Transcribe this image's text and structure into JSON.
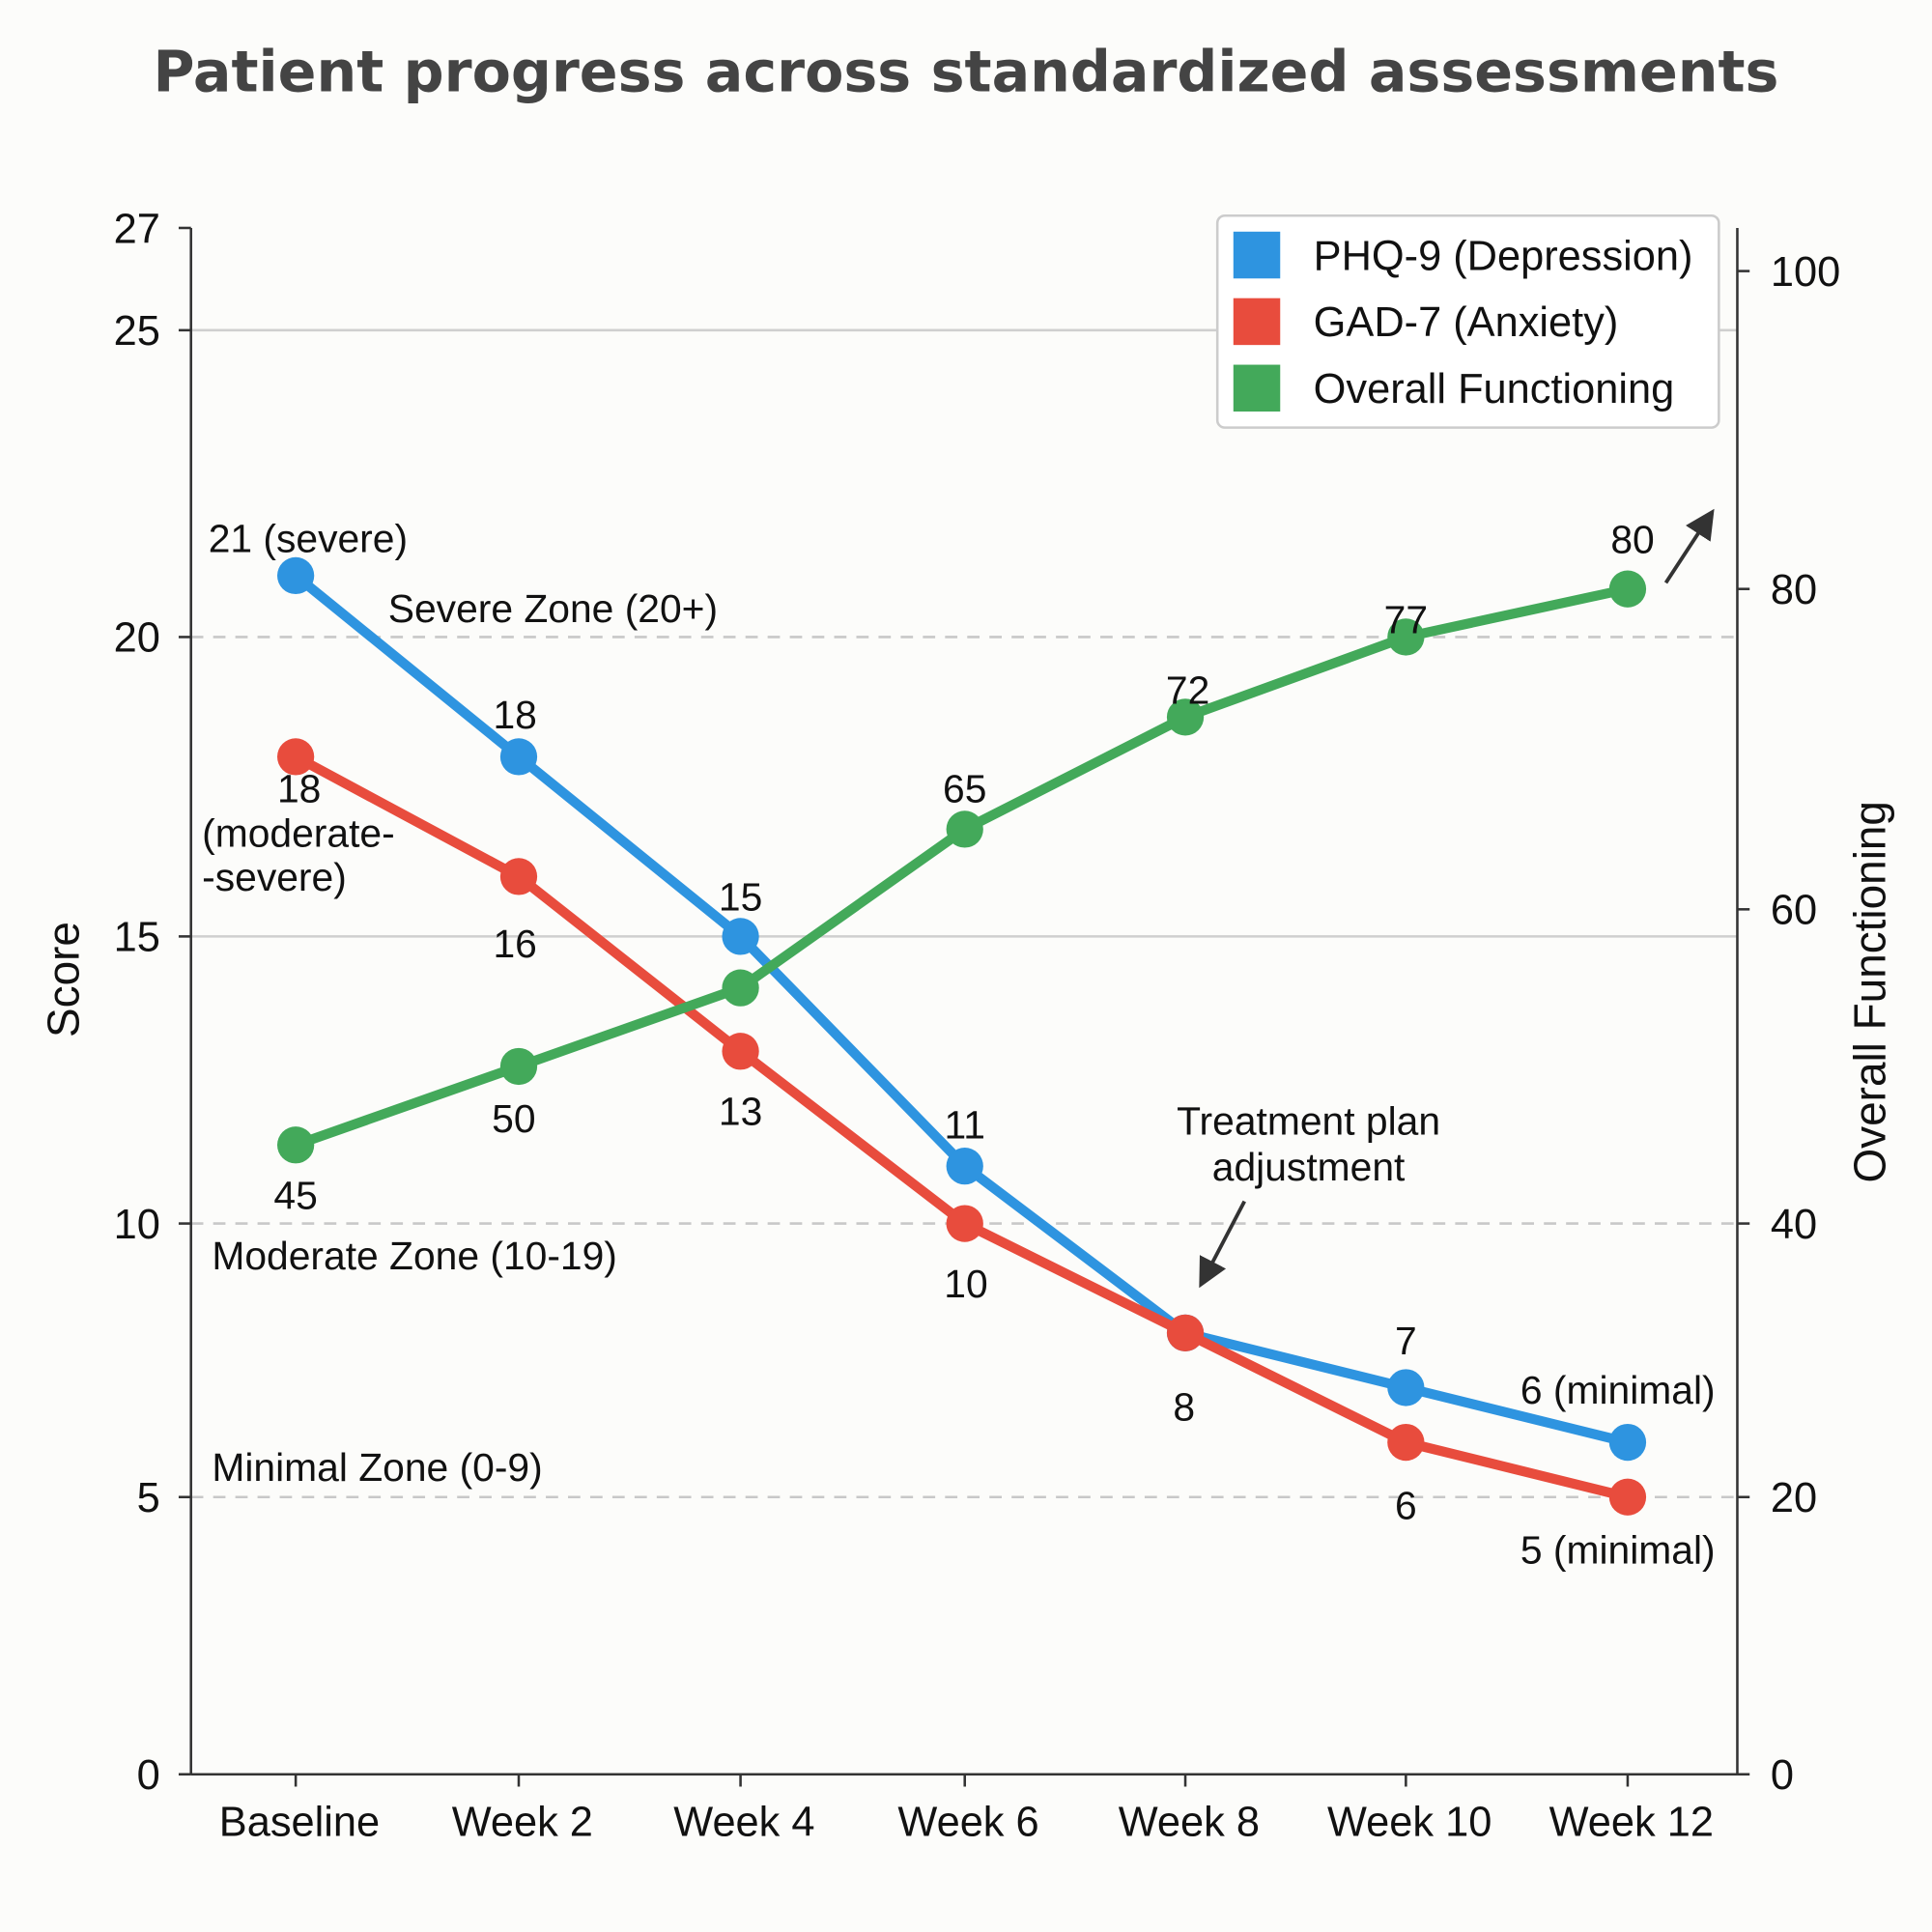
{
  "chart_data": {
    "type": "line",
    "title": "Patient progress across standardized assessments",
    "categories": [
      "Baseline",
      "Week 2",
      "Week 4",
      "Week 6",
      "Week 8",
      "Week 10",
      "Week 12"
    ],
    "ylabel": "Score",
    "ylabel_right": "Overall Functioning",
    "ylim": [
      0,
      27
    ],
    "ylim_right": [
      0,
      100
    ],
    "yticks": [
      "0",
      "5",
      "10",
      "15",
      "20",
      "25",
      "27"
    ],
    "yticks_right": [
      "0",
      "20",
      "40",
      "60",
      "80",
      "100"
    ],
    "grid": "horizontal lines at 25 and 15 (solid), 20, 10, 5 (dashed)",
    "legend_position": "top-right",
    "series": [
      {
        "name": "PHQ-9 (Depression)",
        "axis": "left",
        "color": "#2e94e0",
        "values": [
          21,
          18,
          15,
          11,
          8,
          7,
          6
        ],
        "labels": [
          "21 (severe)",
          "18",
          "15",
          "11",
          "",
          "7",
          "6 (minimal)"
        ]
      },
      {
        "name": "GAD-7 (Anxiety)",
        "axis": "left",
        "color": "#e84c3d",
        "values": [
          18,
          16,
          13,
          10,
          8,
          6,
          5
        ],
        "labels": [
          "18\n(moderate-\n-severe)",
          "16",
          "13",
          "10",
          "8",
          "6",
          "5 (minimal)"
        ]
      },
      {
        "name": "Overall Functioning",
        "axis": "right",
        "color": "#43a95a",
        "values": [
          45,
          50,
          55,
          65,
          72,
          77,
          80
        ],
        "labels": [
          "45",
          "50",
          "",
          "65",
          "72",
          "77",
          "80"
        ]
      }
    ],
    "zones": [
      "Severe Zone (20+)",
      "Moderate Zone (10-19)",
      "Minimal Zone (0-9)"
    ],
    "annotation": {
      "lines": [
        "Treatment plan",
        "adjustment"
      ],
      "target": "Week 8"
    }
  }
}
